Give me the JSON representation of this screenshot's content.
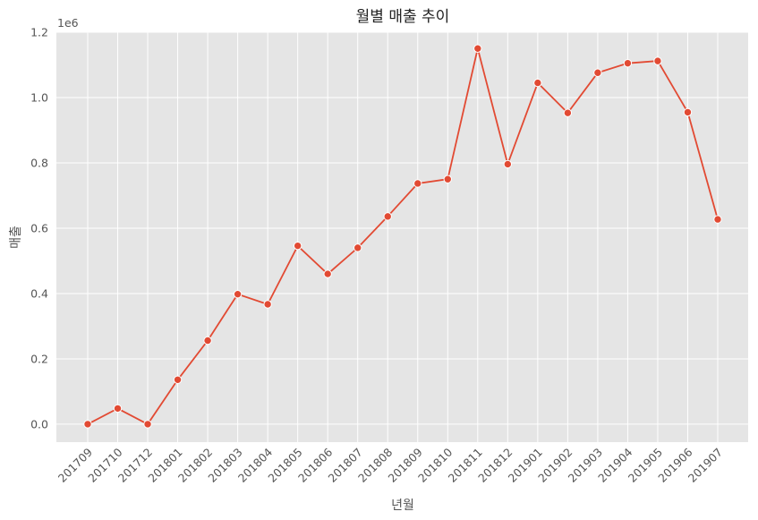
{
  "chart_data": {
    "type": "line",
    "title": "월별 매출 추이",
    "xlabel": "년월",
    "ylabel": "매출",
    "y_offset_label": "1e6",
    "categories": [
      "201709",
      "201710",
      "201712",
      "201801",
      "201802",
      "201803",
      "201804",
      "201805",
      "201806",
      "201807",
      "201808",
      "201809",
      "201810",
      "201811",
      "201812",
      "201901",
      "201902",
      "201903",
      "201904",
      "201905",
      "201906",
      "201907"
    ],
    "series": [
      {
        "values": [
          0,
          48000,
          0,
          136000,
          256000,
          398000,
          367000,
          546000,
          460000,
          540000,
          636000,
          737000,
          750000,
          1150000,
          796000,
          1045000,
          953000,
          1076000,
          1105000,
          1112000,
          955000,
          627000
        ]
      }
    ],
    "ylim": [
      -55000,
      1200000
    ],
    "yticks": [
      0,
      0.2,
      0.4,
      0.6,
      0.8,
      1.0,
      1.2
    ],
    "ytick_labels": [
      "0.0",
      "0.2",
      "0.4",
      "0.6",
      "0.8",
      "1.0",
      "1.2"
    ],
    "grid": true,
    "colors": {
      "line": "#E24A33",
      "background": "#E5E5E5",
      "grid": "#FFFFFF"
    }
  }
}
